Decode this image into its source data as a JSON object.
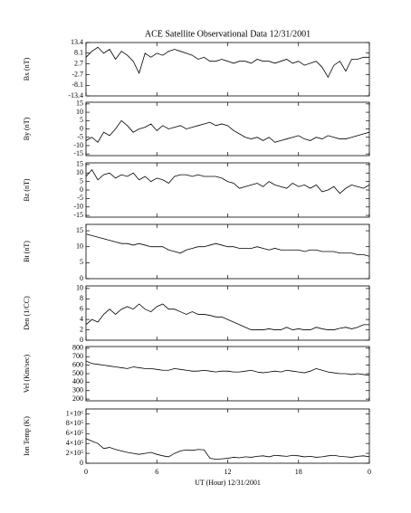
{
  "chart_data": [
    {
      "type": "line",
      "title": "ACE Satellite Observational Data   12/31/2001",
      "ylabel": "Bx (nT)",
      "color": "#000000",
      "x": [
        0,
        0.5,
        1,
        1.5,
        2,
        2.5,
        3,
        3.5,
        4,
        4.5,
        5,
        5.5,
        6,
        6.5,
        7,
        7.5,
        8,
        8.5,
        9,
        9.5,
        10,
        10.5,
        11,
        11.5,
        12,
        12.5,
        13,
        13.5,
        14,
        14.5,
        15,
        15.5,
        16,
        16.5,
        17,
        17.5,
        18,
        18.5,
        19,
        19.5,
        20,
        20.5,
        21,
        21.5,
        22,
        22.5,
        23,
        23.5,
        24
      ],
      "values": [
        6,
        9,
        11,
        8,
        10,
        5,
        9,
        7,
        4,
        -2,
        8,
        6,
        8,
        7,
        9,
        10,
        9,
        8,
        7,
        5,
        6,
        4,
        4,
        5,
        4,
        3,
        4,
        4,
        3,
        5,
        4,
        4,
        3,
        4,
        5,
        3,
        4,
        2,
        3,
        4,
        1,
        -4,
        2,
        4,
        -1,
        5,
        5,
        6,
        6
      ],
      "xlim": [
        0,
        24
      ],
      "ylim": [
        -13.4,
        13.4
      ],
      "yticks": [
        13.4,
        8.1,
        2.7,
        -2.7,
        -8.1,
        -13.4
      ]
    },
    {
      "type": "line",
      "ylabel": "By (nT)",
      "color": "#000000",
      "x": [
        0,
        0.5,
        1,
        1.5,
        2,
        2.5,
        3,
        3.5,
        4,
        4.5,
        5,
        5.5,
        6,
        6.5,
        7,
        7.5,
        8,
        8.5,
        9,
        9.5,
        10,
        10.5,
        11,
        11.5,
        12,
        12.5,
        13,
        13.5,
        14,
        14.5,
        15,
        15.5,
        16,
        16.5,
        17,
        17.5,
        18,
        18.5,
        19,
        19.5,
        20,
        20.5,
        21,
        21.5,
        22,
        22.5,
        23,
        23.5,
        24
      ],
      "values": [
        -7,
        -5,
        -8,
        -2,
        -4,
        0,
        5,
        2,
        -2,
        0,
        1,
        3,
        -1,
        2,
        0,
        1,
        2,
        0,
        1,
        2,
        3,
        4,
        2,
        3,
        2,
        -1,
        -3,
        -5,
        -6,
        -5,
        -7,
        -5,
        -8,
        -7,
        -6,
        -5,
        -4,
        -6,
        -7,
        -5,
        -6,
        -4,
        -5,
        -6,
        -6,
        -5,
        -4,
        -3,
        -2
      ],
      "xlim": [
        0,
        24
      ],
      "ylim": [
        -16,
        16
      ],
      "yticks": [
        15,
        10,
        5,
        0,
        -5,
        -10,
        -15
      ]
    },
    {
      "type": "line",
      "ylabel": "Bz (nT)",
      "color": "#000000",
      "x": [
        0,
        0.5,
        1,
        1.5,
        2,
        2.5,
        3,
        3.5,
        4,
        4.5,
        5,
        5.5,
        6,
        6.5,
        7,
        7.5,
        8,
        8.5,
        9,
        9.5,
        10,
        10.5,
        11,
        11.5,
        12,
        12.5,
        13,
        13.5,
        14,
        14.5,
        15,
        15.5,
        16,
        16.5,
        17,
        17.5,
        18,
        18.5,
        19,
        19.5,
        20,
        20.5,
        21,
        21.5,
        22,
        22.5,
        23,
        23.5,
        24
      ],
      "values": [
        8,
        12,
        6,
        9,
        10,
        7,
        9,
        8,
        10,
        6,
        8,
        5,
        7,
        6,
        4,
        8,
        9,
        9,
        8,
        9,
        8,
        8,
        8,
        7,
        5,
        4,
        1,
        2,
        3,
        4,
        2,
        5,
        3,
        2,
        1,
        4,
        2,
        3,
        1,
        3,
        -1,
        0,
        2,
        -2,
        1,
        3,
        2,
        1,
        3
      ],
      "xlim": [
        0,
        24
      ],
      "ylim": [
        -16,
        16
      ],
      "yticks": [
        15,
        10,
        5,
        0,
        -5,
        -10,
        -15
      ]
    },
    {
      "type": "line",
      "ylabel": "Bt (nT)",
      "color": "#000000",
      "x": [
        0,
        0.5,
        1,
        1.5,
        2,
        2.5,
        3,
        3.5,
        4,
        4.5,
        5,
        5.5,
        6,
        6.5,
        7,
        7.5,
        8,
        8.5,
        9,
        9.5,
        10,
        10.5,
        11,
        11.5,
        12,
        12.5,
        13,
        13.5,
        14,
        14.5,
        15,
        15.5,
        16,
        16.5,
        17,
        17.5,
        18,
        18.5,
        19,
        19.5,
        20,
        20.5,
        21,
        21.5,
        22,
        22.5,
        23,
        23.5,
        24
      ],
      "values": [
        14,
        13.5,
        13,
        12.5,
        12,
        11.5,
        11,
        11,
        10.5,
        11,
        10.5,
        10,
        10,
        10,
        9,
        8.5,
        8,
        9,
        9.5,
        10,
        10,
        10.5,
        11,
        10.5,
        10,
        10,
        9.5,
        9.5,
        9.5,
        10,
        9.5,
        9,
        9.5,
        9,
        9,
        9,
        9,
        8.5,
        9,
        9,
        8.5,
        8.5,
        8.5,
        8,
        8,
        8,
        7.5,
        7.5,
        7
      ],
      "xlim": [
        0,
        24
      ],
      "ylim": [
        0,
        17
      ],
      "yticks": [
        0,
        5,
        10,
        15
      ]
    },
    {
      "type": "line",
      "ylabel": "Den (1/CC)",
      "color": "#000000",
      "x": [
        0,
        0.5,
        1,
        1.5,
        2,
        2.5,
        3,
        3.5,
        4,
        4.5,
        5,
        5.5,
        6,
        6.5,
        7,
        7.5,
        8,
        8.5,
        9,
        9.5,
        10,
        10.5,
        11,
        11.5,
        12,
        12.5,
        13,
        13.5,
        14,
        14.5,
        15,
        15.5,
        16,
        16.5,
        17,
        17.5,
        18,
        18.5,
        19,
        19.5,
        20,
        20.5,
        21,
        21.5,
        22,
        22.5,
        23,
        23.5,
        24
      ],
      "values": [
        3,
        4,
        3.5,
        5,
        6,
        5,
        6,
        6.5,
        6,
        7,
        6,
        5.5,
        6.5,
        7,
        6,
        6,
        5.5,
        5,
        5.5,
        5,
        5,
        4.8,
        4.5,
        4.5,
        4,
        3.5,
        3,
        2.5,
        2,
        2,
        2,
        2.2,
        2,
        2,
        2.5,
        2,
        2.2,
        2,
        2,
        2.5,
        2.2,
        2,
        2,
        2.3,
        2.5,
        2.2,
        2.5,
        3,
        3
      ],
      "xlim": [
        0,
        24
      ],
      "ylim": [
        0,
        10.5
      ],
      "yticks": [
        0,
        2,
        4,
        6,
        8,
        10
      ]
    },
    {
      "type": "line",
      "ylabel": "Vel (Km/sec)",
      "color": "#000000",
      "x": [
        0,
        0.5,
        1,
        1.5,
        2,
        2.5,
        3,
        3.5,
        4,
        4.5,
        5,
        5.5,
        6,
        6.5,
        7,
        7.5,
        8,
        8.5,
        9,
        9.5,
        10,
        10.5,
        11,
        11.5,
        12,
        12.5,
        13,
        13.5,
        14,
        14.5,
        15,
        15.5,
        16,
        16.5,
        17,
        17.5,
        18,
        18.5,
        19,
        19.5,
        20,
        20.5,
        21,
        21.5,
        22,
        22.5,
        23,
        23.5,
        24
      ],
      "values": [
        650,
        620,
        610,
        600,
        590,
        580,
        570,
        560,
        580,
        570,
        560,
        560,
        550,
        540,
        540,
        560,
        550,
        540,
        530,
        530,
        540,
        530,
        520,
        530,
        530,
        520,
        520,
        530,
        540,
        520,
        510,
        520,
        530,
        520,
        540,
        530,
        520,
        510,
        530,
        560,
        540,
        520,
        510,
        500,
        500,
        490,
        500,
        490,
        480
      ],
      "xlim": [
        0,
        24
      ],
      "ylim": [
        180,
        820
      ],
      "yticks": [
        200,
        300,
        400,
        500,
        600,
        700,
        800
      ]
    },
    {
      "type": "line",
      "ylabel": "Ion Temp (K)",
      "xlabel": "UT (Hour)  12/31/2001",
      "color": "#000000",
      "x": [
        0,
        0.5,
        1,
        1.5,
        2,
        2.5,
        3,
        3.5,
        4,
        4.5,
        5,
        5.5,
        6,
        6.5,
        7,
        7.5,
        8,
        8.5,
        9,
        9.5,
        10,
        10.5,
        11,
        11.5,
        12,
        12.5,
        13,
        13.5,
        14,
        14.5,
        15,
        15.5,
        16,
        16.5,
        17,
        17.5,
        18,
        18.5,
        19,
        19.5,
        20,
        20.5,
        21,
        21.5,
        22,
        22.5,
        23,
        23.5,
        24
      ],
      "values": [
        500000,
        450000,
        400000,
        300000,
        320000,
        280000,
        250000,
        220000,
        200000,
        180000,
        200000,
        220000,
        180000,
        150000,
        130000,
        200000,
        250000,
        270000,
        260000,
        280000,
        270000,
        100000,
        80000,
        90000,
        100000,
        120000,
        110000,
        130000,
        120000,
        140000,
        150000,
        130000,
        160000,
        150000,
        140000,
        160000,
        150000,
        130000,
        140000,
        120000,
        130000,
        150000,
        160000,
        140000,
        130000,
        120000,
        140000,
        150000,
        130000
      ],
      "xlim": [
        0,
        24
      ],
      "ylim": [
        0,
        1100000
      ],
      "yticks": [
        0,
        {
          "value": 200000,
          "label": "2×10⁵"
        },
        {
          "value": 400000,
          "label": "4×10⁵"
        },
        {
          "value": 600000,
          "label": "6×10⁵"
        },
        {
          "value": 800000,
          "label": "8×10⁵"
        },
        {
          "value": 1000000,
          "label": "1×10⁶"
        }
      ],
      "xticks": [
        0,
        6,
        12,
        18,
        {
          "value": 24,
          "label": "0"
        }
      ]
    }
  ]
}
